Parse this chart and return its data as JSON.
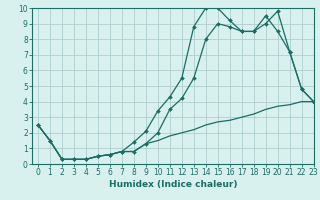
{
  "xlabel": "Humidex (Indice chaleur)",
  "bg_color": "#d8f0ee",
  "grid_color": "#b0cece",
  "line_color": "#1a6e64",
  "xlim": [
    -0.5,
    23
  ],
  "ylim": [
    0,
    10
  ],
  "xticks": [
    0,
    1,
    2,
    3,
    4,
    5,
    6,
    7,
    8,
    9,
    10,
    11,
    12,
    13,
    14,
    15,
    16,
    17,
    18,
    19,
    20,
    21,
    22,
    23
  ],
  "yticks": [
    0,
    1,
    2,
    3,
    4,
    5,
    6,
    7,
    8,
    9,
    10
  ],
  "line1_x": [
    0,
    1,
    2,
    3,
    4,
    5,
    6,
    7,
    8,
    9,
    10,
    11,
    12,
    13,
    14,
    15,
    16,
    17,
    18,
    19,
    20,
    21,
    22,
    23
  ],
  "line1_y": [
    2.5,
    1.5,
    0.3,
    0.3,
    0.3,
    0.5,
    0.6,
    0.8,
    1.4,
    2.1,
    3.4,
    4.3,
    5.5,
    8.8,
    10.0,
    10.0,
    9.2,
    8.5,
    8.5,
    9.5,
    8.5,
    7.2,
    4.8,
    4.0
  ],
  "line2_x": [
    0,
    1,
    2,
    3,
    4,
    5,
    6,
    7,
    8,
    9,
    10,
    11,
    12,
    13,
    14,
    15,
    16,
    17,
    18,
    19,
    20,
    21,
    22,
    23
  ],
  "line2_y": [
    2.5,
    1.5,
    0.3,
    0.3,
    0.3,
    0.5,
    0.6,
    0.8,
    0.8,
    1.3,
    2.0,
    3.5,
    4.2,
    5.5,
    8.0,
    9.0,
    8.8,
    8.5,
    8.5,
    9.0,
    9.8,
    7.2,
    4.8,
    4.0
  ],
  "line3_x": [
    0,
    1,
    2,
    3,
    4,
    5,
    6,
    7,
    8,
    9,
    10,
    11,
    12,
    13,
    14,
    15,
    16,
    17,
    18,
    19,
    20,
    21,
    22,
    23
  ],
  "line3_y": [
    2.5,
    1.5,
    0.3,
    0.3,
    0.3,
    0.5,
    0.6,
    0.8,
    0.8,
    1.3,
    1.5,
    1.8,
    2.0,
    2.2,
    2.5,
    2.7,
    2.8,
    3.0,
    3.2,
    3.5,
    3.7,
    3.8,
    4.0,
    4.0
  ],
  "tick_fontsize": 5.5,
  "xlabel_fontsize": 6.5
}
